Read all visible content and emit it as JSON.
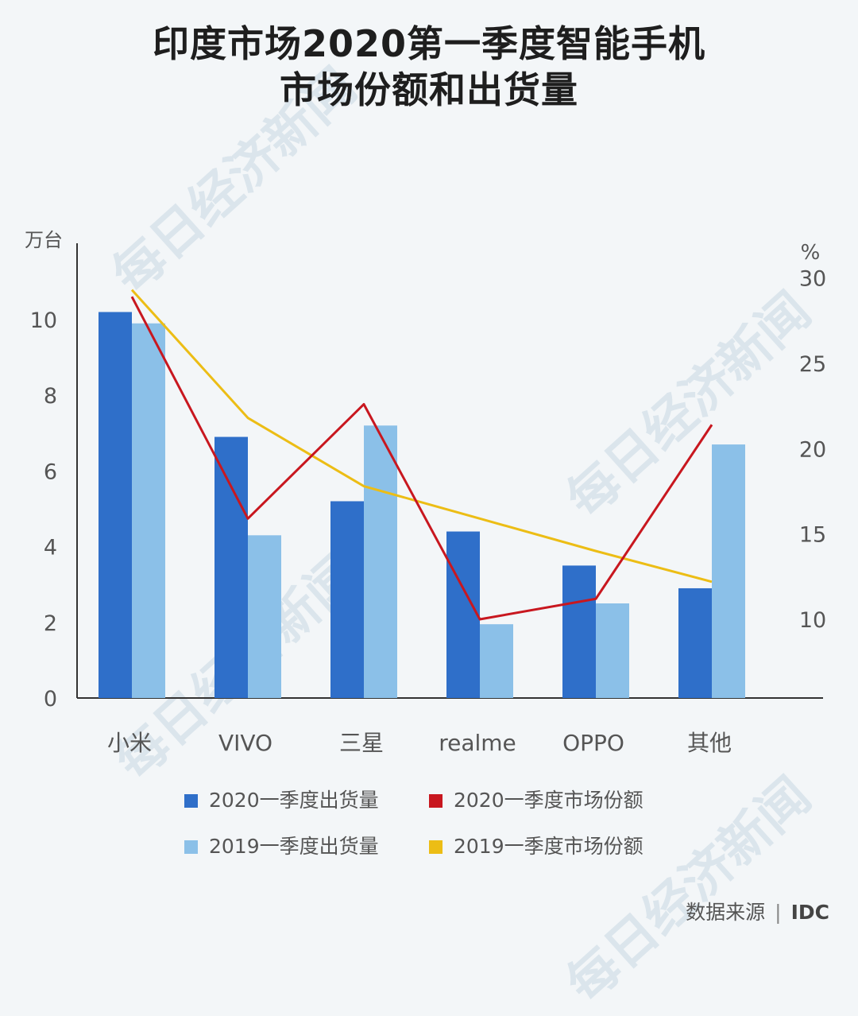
{
  "title": {
    "line1": "印度市场2020第一季度智能手机",
    "line2": "市场份额和出货量"
  },
  "watermark": "每日经济新闻",
  "source": {
    "label": "数据来源",
    "separator": "|",
    "value": "IDC"
  },
  "colors": {
    "bar_2020": "#2f6fc9",
    "bar_2019": "#8bc0e8",
    "line_2020": "#c8171f",
    "line_2019": "#ecbd15",
    "axis": "#333333",
    "text": "#555555"
  },
  "legend": [
    {
      "label": "2020一季度出货量",
      "color": "#2f6fc9"
    },
    {
      "label": "2020一季度市场份额",
      "color": "#c8171f"
    },
    {
      "label": "2019一季度出货量",
      "color": "#8bc0e8"
    },
    {
      "label": "2019一季度市场份额",
      "color": "#ecbd15"
    }
  ],
  "chart_data": {
    "type": "bar",
    "categories": [
      "小米",
      "VIVO",
      "三星",
      "realme",
      "OPPO",
      "其他"
    ],
    "series": [
      {
        "name": "2020一季度出货量",
        "type": "bar",
        "axis": "left",
        "values": [
          10.2,
          6.9,
          5.2,
          4.4,
          3.5,
          2.9
        ]
      },
      {
        "name": "2019一季度出货量",
        "type": "bar",
        "axis": "left",
        "values": [
          9.9,
          4.3,
          7.2,
          1.95,
          2.5,
          6.7
        ]
      },
      {
        "name": "2020一季度市场份额",
        "type": "line",
        "axis": "right",
        "values": [
          28.9,
          15.9,
          22.6,
          10.0,
          11.2,
          21.4
        ]
      },
      {
        "name": "2019一季度市场份额",
        "type": "line",
        "axis": "right",
        "values": [
          29.3,
          21.8,
          17.8,
          15.9,
          14.0,
          12.2
        ]
      }
    ],
    "y_left": {
      "label": "万台",
      "ticks": [
        0,
        2,
        4,
        6,
        8,
        10
      ],
      "range": [
        0,
        12
      ]
    },
    "y_right": {
      "label": "%",
      "ticks": [
        10,
        15,
        20,
        25,
        30
      ],
      "range": [
        4.5,
        31
      ]
    },
    "legend_position": "bottom"
  }
}
